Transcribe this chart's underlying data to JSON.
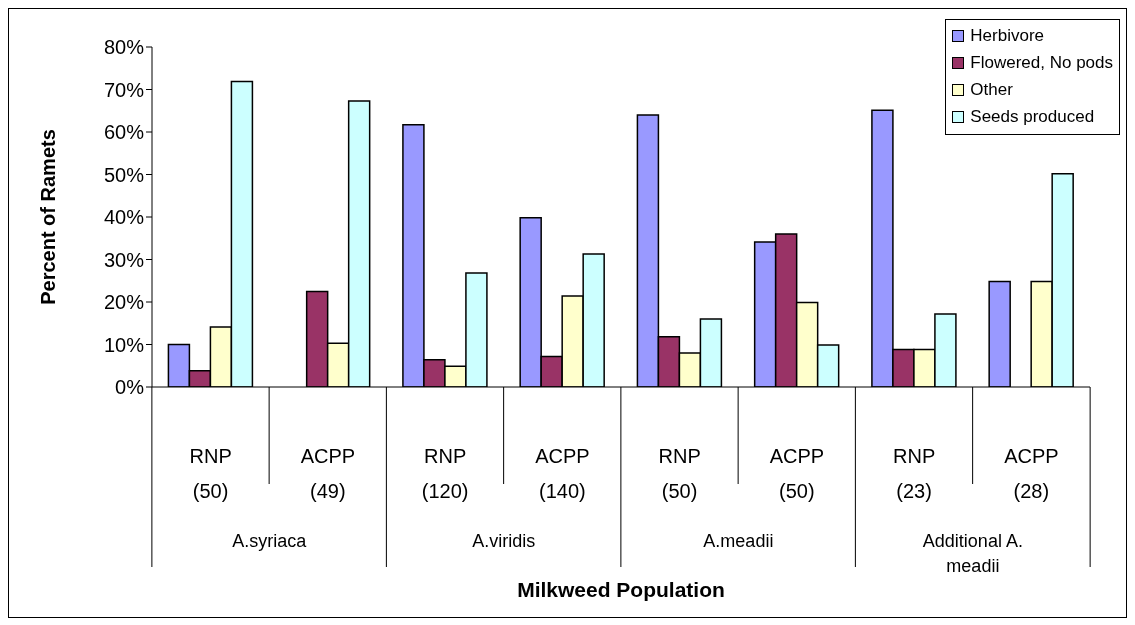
{
  "chart_data": {
    "type": "bar",
    "xlabel": "Milkweed Population",
    "ylabel": "Percent of Ramets",
    "categories": [
      "RNP (50)",
      "ACPP (49)",
      "RNP (120)",
      "ACPP (140)",
      "RNP (50)",
      "ACPP (50)",
      "RNP (23)",
      "ACPP (28)"
    ],
    "annotations": [
      "A.syriaca",
      "A.viridis",
      "A.meadii",
      "Additional A. meadii"
    ],
    "series": [
      {
        "name": "Herbivore",
        "color": "#9999ff",
        "values": [
          10,
          0,
          61.7,
          39.8,
          64,
          34.1,
          65.1,
          24.8
        ]
      },
      {
        "name": "Flowered, No pods",
        "color": "#993366",
        "values": [
          3.8,
          22.5,
          6.4,
          7.2,
          11.8,
          36,
          8.8,
          0
        ]
      },
      {
        "name": "Other",
        "color": "#ffffcc",
        "values": [
          14.1,
          10.3,
          4.9,
          21.4,
          8,
          19.9,
          8.8,
          24.8
        ]
      },
      {
        "name": "Seeds produced",
        "color": "#ccffff",
        "values": [
          71.9,
          67.3,
          26.8,
          31.3,
          16,
          9.9,
          17.2,
          50.2
        ]
      }
    ],
    "ylim": [
      0,
      80
    ],
    "yticks": [
      {
        "value": 0,
        "label": "0%"
      },
      {
        "value": 10,
        "label": "10%"
      },
      {
        "value": 20,
        "label": "20%"
      },
      {
        "value": 30,
        "label": "30%"
      },
      {
        "value": 40,
        "label": "40%"
      },
      {
        "value": 50,
        "label": "50%"
      },
      {
        "value": 60,
        "label": "60%"
      },
      {
        "value": 70,
        "label": "70%"
      },
      {
        "value": 80,
        "label": "80%"
      }
    ],
    "grid": false,
    "legend": "top right"
  }
}
